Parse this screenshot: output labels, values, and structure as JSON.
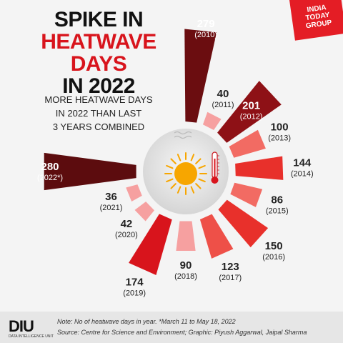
{
  "title": {
    "line1": "SPIKE IN",
    "line2": "HEATWAVE DAYS",
    "line3": "IN 2022"
  },
  "subtitle": {
    "line1": "MORE HEATWAVE DAYS",
    "line2": "IN 2022 THAN LAST",
    "line3": "3 YEARS COMBINED"
  },
  "logo": {
    "line1": "INDIA",
    "line2": "TODAY",
    "line3": "GROUP"
  },
  "diu_logo": {
    "mark": "DIU",
    "tagline": "DATA INTELLIGENCE UNIT"
  },
  "note": "Note: No of heatwave days in year.  *March 11 to May 18, 2022",
  "source": "Source: Centre for Science and Environment; Graphic: Piyush Aggarwal, Jaipal Sharma",
  "colors": {
    "accent": "#d8141c",
    "dark": "#6b0d10",
    "light": "#f6a0a0",
    "sun": "#f7a600"
  },
  "chart_data": {
    "type": "bar",
    "layout": "radial",
    "categories": [
      "2010",
      "2011",
      "2012",
      "2013",
      "2014",
      "2015",
      "2016",
      "2017",
      "2018",
      "2019",
      "2020",
      "2021",
      "2022*"
    ],
    "year_labels": [
      "(2010)",
      "(2011)",
      "(2012)",
      "(2013)",
      "(2014)",
      "(2015)",
      "(2016)",
      "(2017)",
      "(2018)",
      "(2019)",
      "(2020)",
      "(2021)",
      "(2022*)"
    ],
    "values": [
      279,
      40,
      201,
      100,
      144,
      86,
      150,
      123,
      90,
      174,
      42,
      36,
      280
    ],
    "bar_colors": [
      "#6b0d10",
      "#f6a0a0",
      "#8e1116",
      "#f26b63",
      "#e8302b",
      "#f26b63",
      "#e8302b",
      "#ee5048",
      "#f6a0a0",
      "#d8141c",
      "#f6a0a0",
      "#f6a0a0",
      "#5c0c0e"
    ]
  }
}
